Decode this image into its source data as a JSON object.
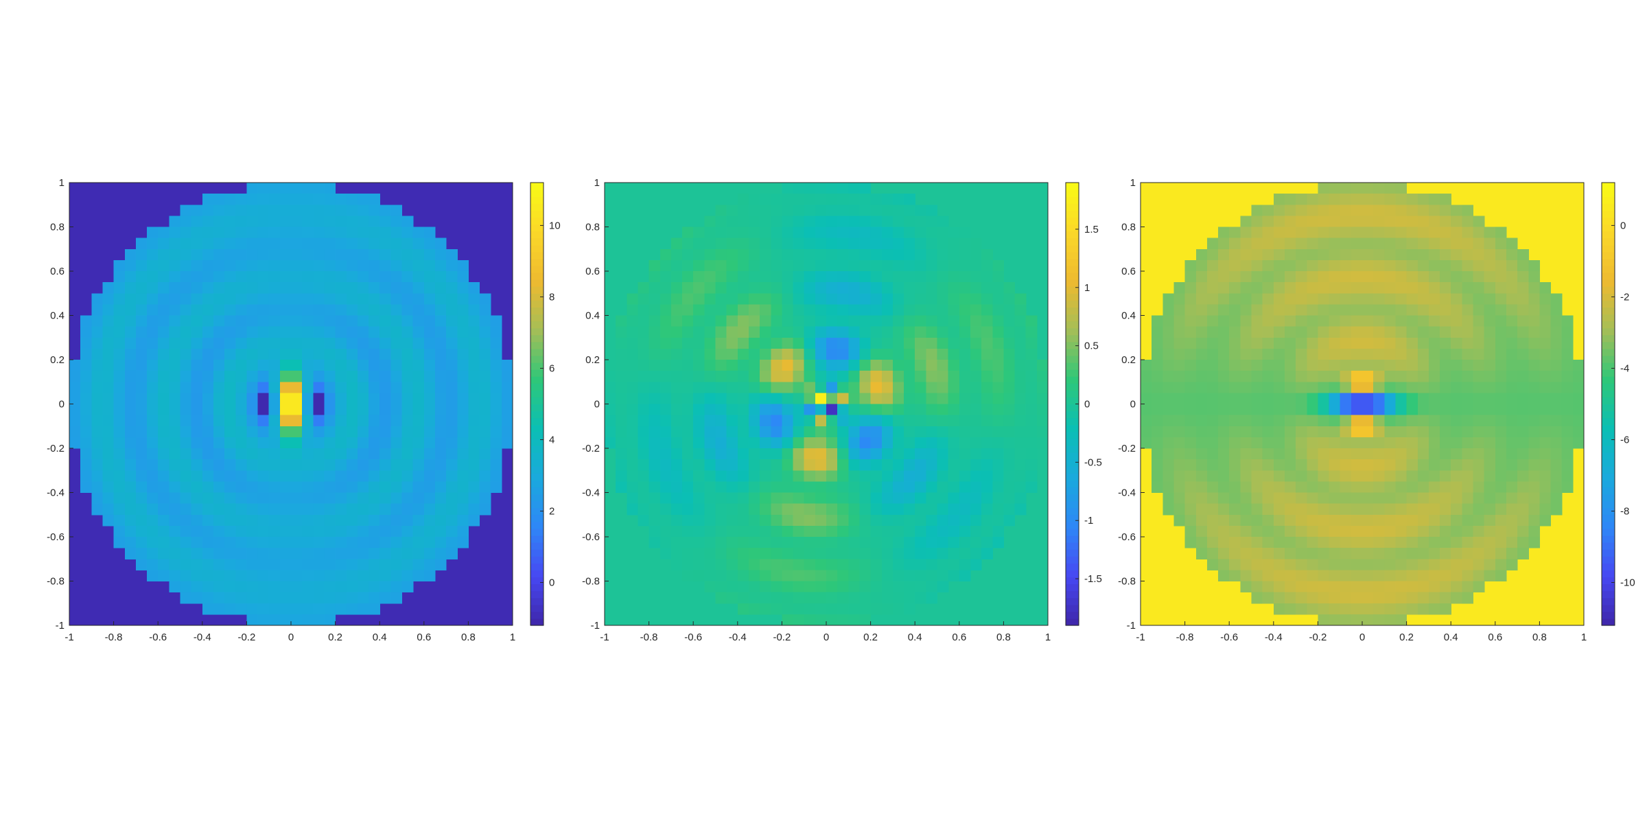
{
  "figure": {
    "title": "",
    "colormap": "parula",
    "colormap_stops": [
      "#3e26a8",
      "#4748f2",
      "#2e87f7",
      "#1aa9dd",
      "#0bbfb4",
      "#2ec779",
      "#a4be57",
      "#eeba30",
      "#fbd829",
      "#f9fb15"
    ]
  },
  "chart_data": [
    {
      "type": "heatmap",
      "title": "",
      "xlabel": "",
      "ylabel": "",
      "xlim": [
        -1,
        1
      ],
      "ylim": [
        -1,
        1
      ],
      "x_ticks": [
        "-1",
        "-0.8",
        "-0.6",
        "-0.4",
        "-0.2",
        "0",
        "0.2",
        "0.4",
        "0.6",
        "0.8",
        "1"
      ],
      "y_ticks": [
        "-1",
        "-0.8",
        "-0.6",
        "-0.4",
        "-0.2",
        "0",
        "0.2",
        "0.4",
        "0.6",
        "0.8",
        "1"
      ],
      "domain": "disk of radius 1 on a 40x40 grid",
      "field": "vertical dipole-like peak at origin with concentric ripples",
      "background_value": -1.0,
      "value_range": [
        -1.2,
        11.2
      ],
      "colorbar": {
        "limits": [
          -1.2,
          11.2
        ],
        "ticks": [
          "0",
          "2",
          "4",
          "6",
          "8",
          "10"
        ]
      }
    },
    {
      "type": "heatmap",
      "title": "",
      "xlabel": "",
      "ylabel": "",
      "xlim": [
        -1,
        1
      ],
      "ylim": [
        -1,
        1
      ],
      "x_ticks": [
        "-1",
        "-0.8",
        "-0.6",
        "-0.4",
        "-0.2",
        "0",
        "0.2",
        "0.4",
        "0.6",
        "0.8",
        "1"
      ],
      "y_ticks": [
        "-1",
        "-0.8",
        "-0.6",
        "-0.4",
        "-0.2",
        "0",
        "0.2",
        "0.4",
        "0.6",
        "0.8",
        "1"
      ],
      "domain": "disk of radius 1 on a 40x40 grid",
      "field": "six-lobed angular pattern (sin 3θ) with radial ripples, extremes near origin",
      "background_value": 0.0,
      "value_range": [
        -1.9,
        1.9
      ],
      "colorbar": {
        "limits": [
          -1.9,
          1.9
        ],
        "ticks": [
          "-1.5",
          "-1",
          "-0.5",
          "0",
          "0.5",
          "1",
          "1.5"
        ]
      }
    },
    {
      "type": "heatmap",
      "title": "",
      "xlabel": "",
      "ylabel": "",
      "xlim": [
        -1,
        1
      ],
      "ylim": [
        -1,
        1
      ],
      "x_ticks": [
        "-1",
        "-0.8",
        "-0.6",
        "-0.4",
        "-0.2",
        "0",
        "0.2",
        "0.4",
        "0.6",
        "0.8",
        "1"
      ],
      "y_ticks": [
        "-1",
        "-0.8",
        "-0.6",
        "-0.4",
        "-0.2",
        "0",
        "0.2",
        "0.4",
        "0.6",
        "0.8",
        "1"
      ],
      "domain": "disk of radius 1 on a 40x40 grid",
      "field": "horizontal negative trough at origin with concentric ripples",
      "background_value": 0.5,
      "value_range": [
        -11.2,
        1.2
      ],
      "colorbar": {
        "limits": [
          -11.2,
          1.2
        ],
        "ticks": [
          "-10",
          "-8",
          "-6",
          "-4",
          "-2",
          "0"
        ]
      }
    }
  ]
}
